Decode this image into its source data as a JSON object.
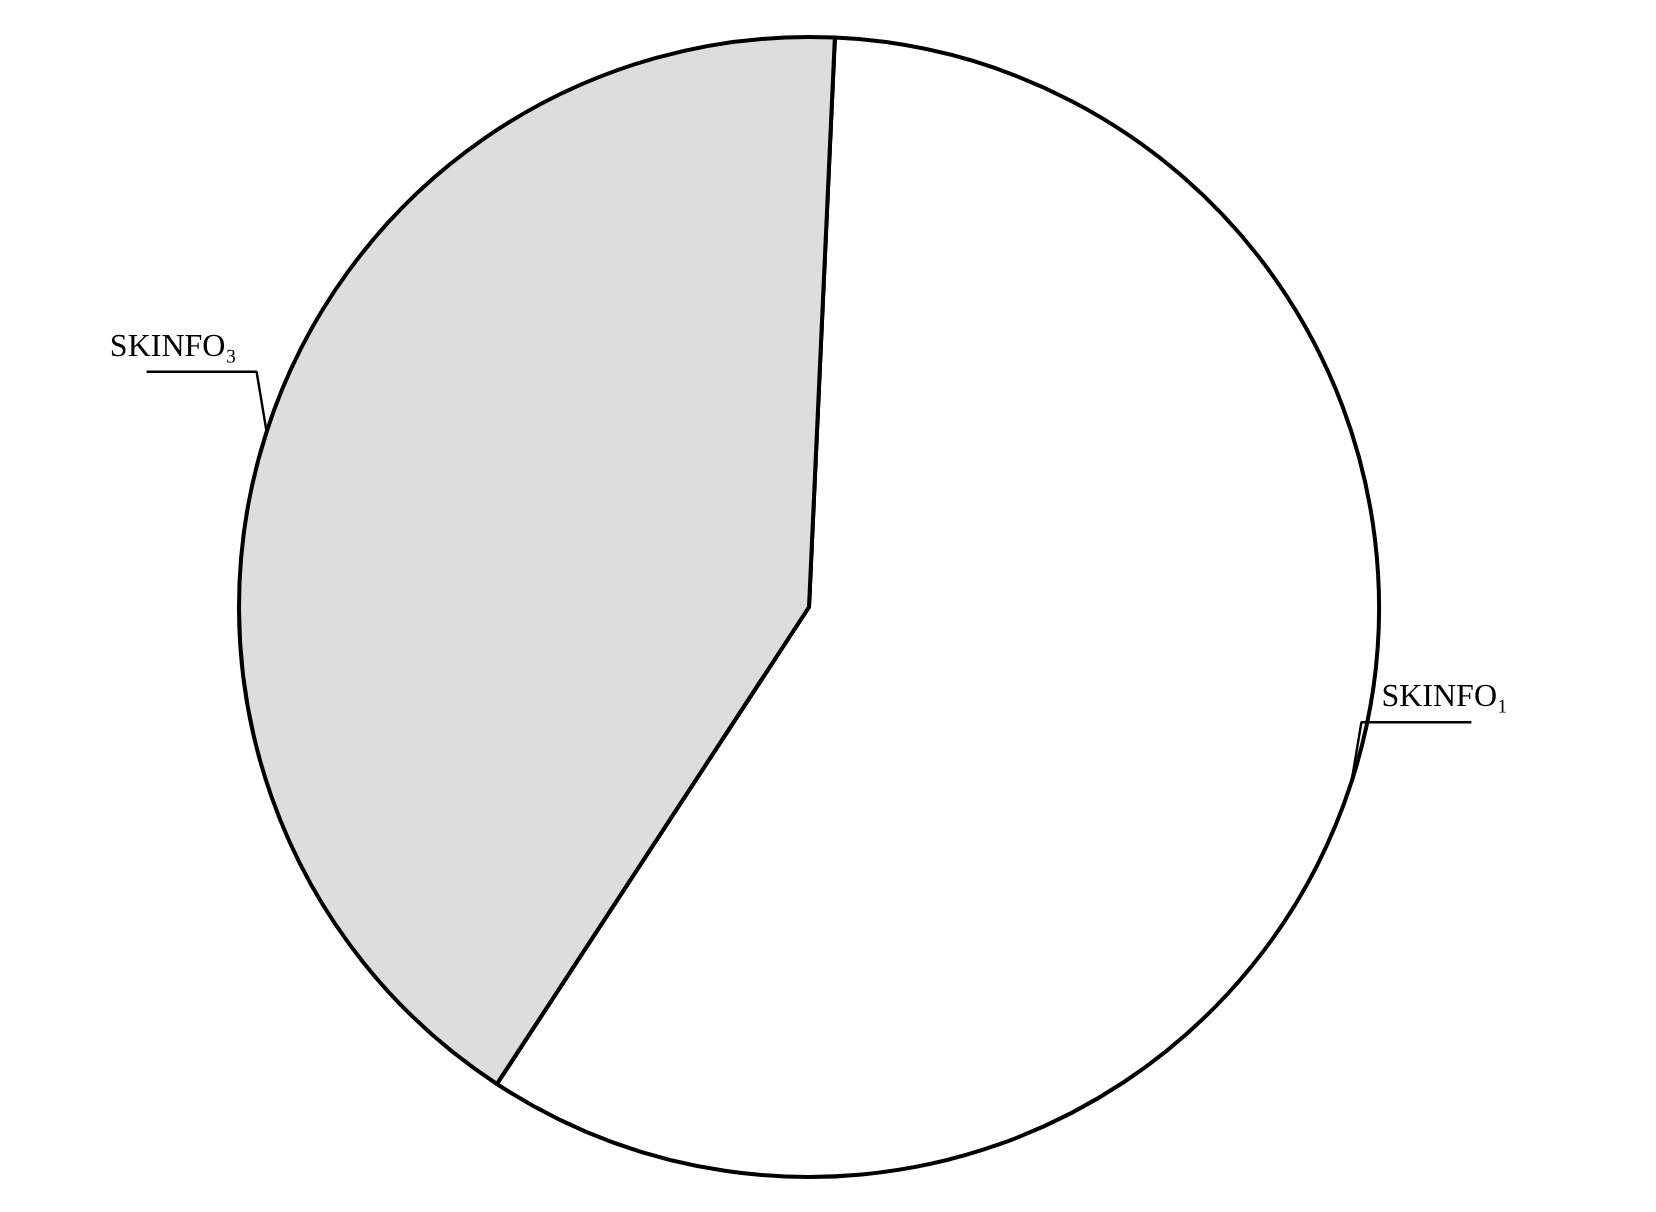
{
  "chart_data": {
    "type": "pie",
    "categories": [
      "SKINFO₁",
      "SKINFO₃"
    ],
    "values": [
      58.5,
      41.5
    ],
    "colors": [
      "#ffffff",
      "#dddddd"
    ]
  }
}
